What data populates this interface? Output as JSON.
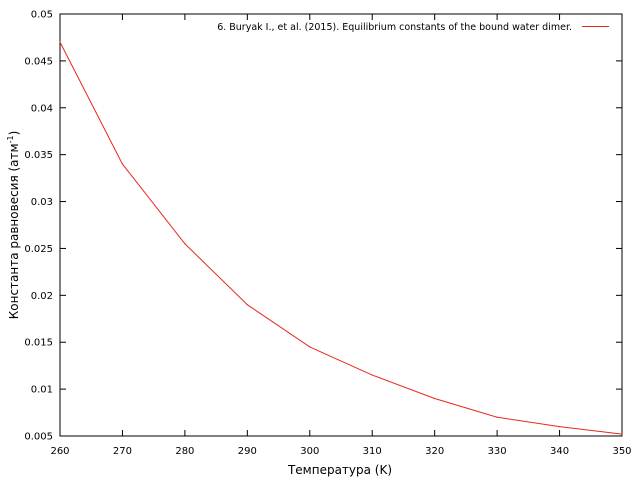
{
  "chart_data": {
    "type": "line",
    "title": "",
    "xlabel": "Температура (K)",
    "ylabel_main": "Константа равновесия (атм",
    "ylabel_sup": "-1",
    "ylabel_tail": ")",
    "xlim": [
      260,
      350
    ],
    "ylim": [
      0.005,
      0.05
    ],
    "xticks": [
      260,
      270,
      280,
      290,
      300,
      310,
      320,
      330,
      340,
      350
    ],
    "xtick_labels": [
      "260",
      "270",
      "280",
      "290",
      "300",
      "310",
      "320",
      "330",
      "340",
      "350"
    ],
    "yticks": [
      0.005,
      0.01,
      0.015,
      0.02,
      0.025,
      0.03,
      0.035,
      0.04,
      0.045,
      0.05
    ],
    "ytick_labels": [
      "0.005",
      "0.01",
      "0.015",
      "0.02",
      "0.025",
      "0.03",
      "0.035",
      "0.04",
      "0.045",
      "0.05"
    ],
    "grid": false,
    "legend_position": "top-right",
    "series": [
      {
        "name": "6. Buryak I., et al. (2015). Equilibrium constants of the bound water dimer.",
        "color": "#e8281e",
        "x": [
          260,
          270,
          280,
          290,
          300,
          310,
          320,
          330,
          340,
          350
        ],
        "y": [
          0.047,
          0.034,
          0.0255,
          0.019,
          0.0145,
          0.0115,
          0.009,
          0.007,
          0.006,
          0.0052
        ]
      }
    ]
  }
}
